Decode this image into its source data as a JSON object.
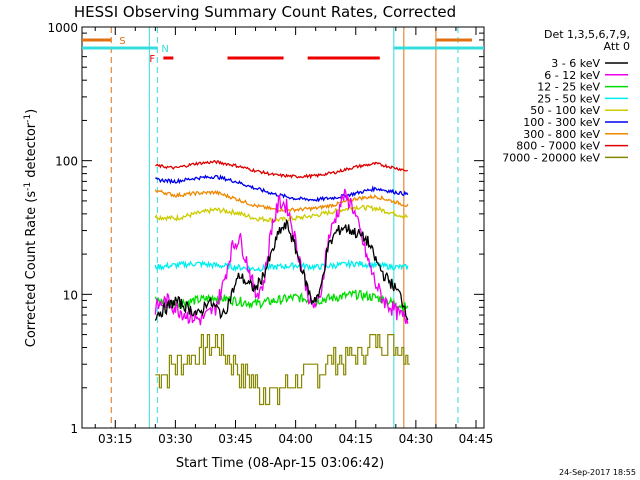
{
  "chart_data": {
    "type": "line",
    "title": "HESSI Observing Summary Count Rates, Corrected",
    "xlabel": "Start Time (08-Apr-15 03:06:42)",
    "ylabel": "Corrected Count Rate (s",
    "ylabel_sup1": "-1",
    "ylabel_mid": " detector",
    "ylabel_sup2": "-1",
    "ylabel_end": ")",
    "y_scale": "log",
    "ylim": [
      1,
      1000
    ],
    "xlim": [
      "03:06:42",
      "04:47:00"
    ],
    "x_ticks": [
      "03:15",
      "03:30",
      "03:45",
      "04:00",
      "04:15",
      "04:30",
      "04:45"
    ],
    "y_ticks": [
      {
        "value": 1,
        "label": "1"
      },
      {
        "value": 10,
        "label": "10"
      },
      {
        "value": 100,
        "label": "100"
      },
      {
        "value": 1000,
        "label": "1000"
      }
    ],
    "legend_title_1": "Det 1,3,5,6,7,9,",
    "legend_title_2": "Att 0",
    "legend_placement": "right",
    "timestamp": "24-Sep-2017 18:55",
    "flags": [
      {
        "label": "S",
        "color": "#e07010"
      },
      {
        "label": "N",
        "color": "#33dddd"
      },
      {
        "label": "F",
        "color": "#ee0000"
      }
    ],
    "series": [
      {
        "name": "3 - 6 keV",
        "color": "#000000",
        "x": [
          "03:25",
          "03:28",
          "03:30",
          "03:33",
          "03:36",
          "03:38",
          "03:40",
          "03:42",
          "03:44",
          "03:46",
          "03:48",
          "03:50",
          "03:52",
          "03:54",
          "03:56",
          "03:58",
          "04:00",
          "04:02",
          "04:04",
          "04:06",
          "04:08",
          "04:10",
          "04:12",
          "04:14",
          "04:16",
          "04:18",
          "04:20",
          "04:22",
          "04:24",
          "04:26",
          "04:28"
        ],
        "y": [
          7,
          8,
          9,
          8,
          7,
          9,
          8,
          7,
          10,
          14,
          12,
          11,
          14,
          20,
          30,
          33,
          22,
          14,
          9,
          10,
          22,
          29,
          32,
          30,
          28,
          25,
          18,
          14,
          12,
          10,
          7
        ]
      },
      {
        "name": "6 - 12 keV",
        "color": "#ee00ee",
        "x": [
          "03:25",
          "03:28",
          "03:30",
          "03:33",
          "03:36",
          "03:38",
          "03:40",
          "03:42",
          "03:44",
          "03:46",
          "03:48",
          "03:50",
          "03:52",
          "03:54",
          "03:56",
          "03:58",
          "04:00",
          "04:02",
          "04:04",
          "04:06",
          "04:08",
          "04:10",
          "04:12",
          "04:14",
          "04:16",
          "04:18",
          "04:20",
          "04:22",
          "04:24",
          "04:26",
          "04:28"
        ],
        "y": [
          8,
          9,
          8,
          7,
          6.5,
          7,
          8,
          12,
          22,
          27,
          17,
          10,
          12,
          32,
          50,
          45,
          25,
          14,
          8,
          9,
          25,
          38,
          55,
          48,
          30,
          18,
          12,
          9,
          8,
          7,
          6.5
        ]
      },
      {
        "name": "12 - 25 keV",
        "color": "#00dd00",
        "x": [
          "03:25",
          "03:30",
          "03:35",
          "03:40",
          "03:45",
          "03:50",
          "03:55",
          "04:00",
          "04:05",
          "04:10",
          "04:15",
          "04:20",
          "04:25",
          "04:28"
        ],
        "y": [
          9,
          8.5,
          9,
          9.5,
          9,
          8.5,
          9,
          9.5,
          9,
          9.5,
          10,
          9.5,
          8.5,
          8
        ]
      },
      {
        "name": "25 - 50 keV",
        "color": "#00eeee",
        "x": [
          "03:25",
          "03:30",
          "03:35",
          "03:40",
          "03:45",
          "03:50",
          "03:55",
          "04:00",
          "04:05",
          "04:10",
          "04:15",
          "04:20",
          "04:25",
          "04:28"
        ],
        "y": [
          16,
          16.5,
          17,
          16.5,
          16,
          15.5,
          16,
          16.5,
          16,
          16.5,
          17,
          16.5,
          16,
          16
        ]
      },
      {
        "name": "50 - 100 keV",
        "color": "#cccc00",
        "x": [
          "03:25",
          "03:30",
          "03:35",
          "03:40",
          "03:45",
          "03:50",
          "03:55",
          "04:00",
          "04:05",
          "04:10",
          "04:15",
          "04:20",
          "04:25",
          "04:28"
        ],
        "y": [
          38,
          37,
          40,
          43,
          41,
          37,
          36,
          37,
          39,
          42,
          45,
          44,
          40,
          38
        ]
      },
      {
        "name": "100 - 300 keV",
        "color": "#0000ee",
        "x": [
          "03:25",
          "03:30",
          "03:35",
          "03:40",
          "03:45",
          "03:50",
          "03:55",
          "04:00",
          "04:05",
          "04:10",
          "04:15",
          "04:20",
          "04:25",
          "04:28"
        ],
        "y": [
          72,
          70,
          74,
          76,
          70,
          62,
          56,
          52,
          51,
          53,
          57,
          62,
          58,
          56
        ]
      },
      {
        "name": "300 - 800 keV",
        "color": "#ee8800",
        "x": [
          "03:25",
          "03:30",
          "03:35",
          "03:40",
          "03:45",
          "03:50",
          "03:55",
          "04:00",
          "04:05",
          "04:10",
          "04:15",
          "04:20",
          "04:25",
          "04:28"
        ],
        "y": [
          60,
          55,
          57,
          58,
          52,
          46,
          43,
          43,
          44,
          47,
          52,
          54,
          49,
          46
        ]
      },
      {
        "name": "800 - 7000 keV",
        "color": "#dd0000",
        "x": [
          "03:25",
          "03:30",
          "03:35",
          "03:40",
          "03:45",
          "03:50",
          "03:55",
          "04:00",
          "04:05",
          "04:10",
          "04:15",
          "04:20",
          "04:25",
          "04:28"
        ],
        "y": [
          92,
          88,
          95,
          98,
          92,
          84,
          78,
          76,
          77,
          82,
          90,
          95,
          88,
          84
        ]
      },
      {
        "name": "7000 - 20000 keV",
        "color": "#888800",
        "x": [
          "03:25",
          "03:30",
          "03:35",
          "03:40",
          "03:45",
          "03:50",
          "03:55",
          "04:00",
          "04:05",
          "04:10",
          "04:15",
          "04:20",
          "04:25",
          "04:28"
        ],
        "y": [
          2.5,
          3,
          3.5,
          4.5,
          3,
          2,
          1.8,
          2.2,
          2.8,
          3.2,
          3.5,
          4.5,
          4.5,
          3.5
        ]
      }
    ]
  }
}
